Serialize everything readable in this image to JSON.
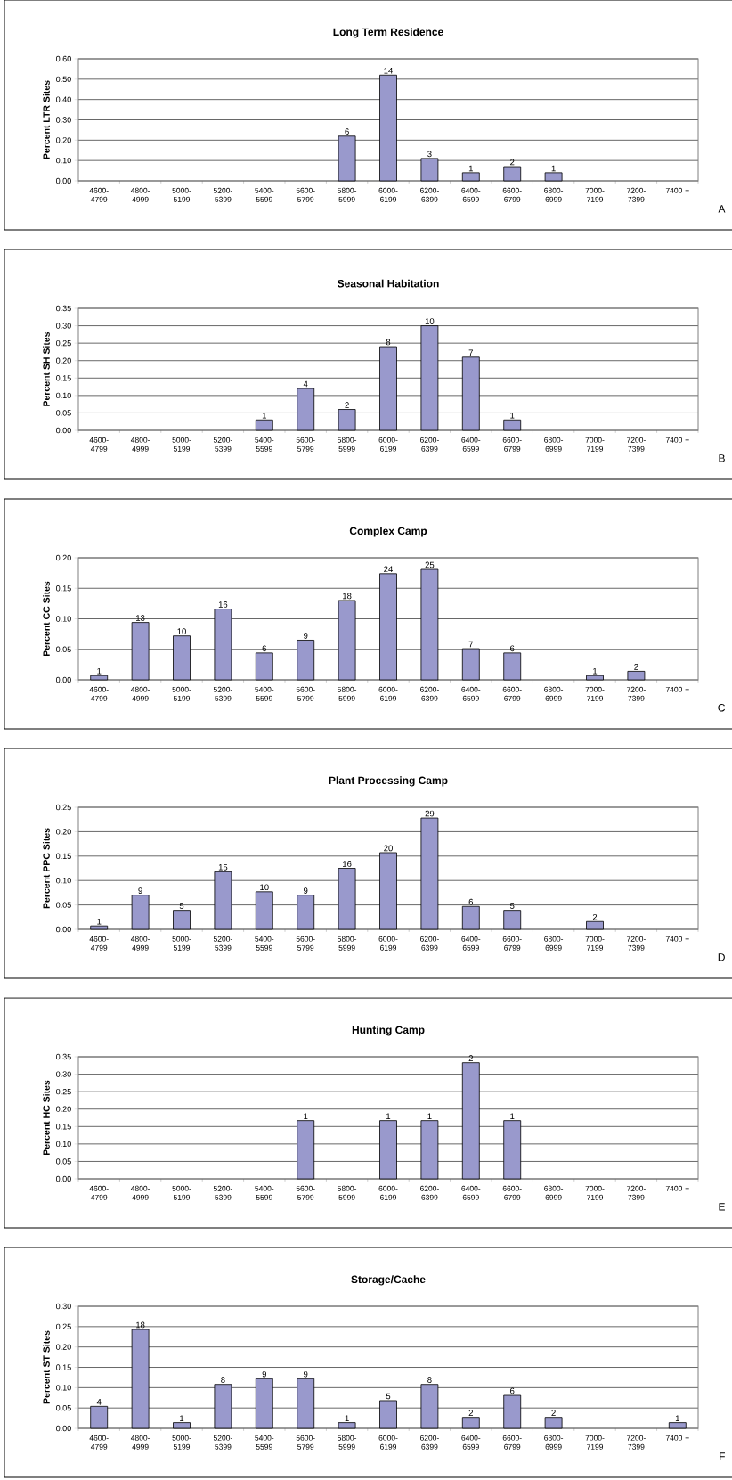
{
  "chart_data": [
    {
      "type": "bar",
      "title": "Long Term Residence",
      "ylabel": "Percent LTR Sites",
      "categories": [
        "4600-4799",
        "4800-4999",
        "5000-5199",
        "5200-5399",
        "5400-5599",
        "5600-5799",
        "5800-5999",
        "6000-6199",
        "6200-6399",
        "6400-6599",
        "6600-6799",
        "6800-6999",
        "7000-7199",
        "7200-7399",
        "7400 +"
      ],
      "values": [
        null,
        null,
        null,
        null,
        null,
        null,
        0.22,
        0.52,
        0.11,
        0.04,
        0.07,
        0.04,
        null,
        null,
        null
      ],
      "color": "#9999cc",
      "ylim": [
        0,
        0.6
      ],
      "yticks": [
        {
          "value": 0,
          "label": "0.00"
        },
        {
          "value": 0.1,
          "label": "0.10"
        },
        {
          "value": 0.2,
          "label": "0.20"
        },
        {
          "value": 0.3,
          "label": "0.30"
        },
        {
          "value": 0.4,
          "label": "0.40"
        },
        {
          "value": 0.5,
          "label": "0.50"
        },
        {
          "value": 0.6,
          "label": "0.60"
        }
      ],
      "grid": "y",
      "annotations": [
        {
          "text": "6",
          "x": "5800-5999",
          "y": 0.22
        },
        {
          "text": "14",
          "x": "6000-6199",
          "y": 0.52
        },
        {
          "text": "3",
          "x": "6200-6399",
          "y": 0.11
        },
        {
          "text": "1",
          "x": "6400-6599",
          "y": 0.04
        },
        {
          "text": "2",
          "x": "6600-6799",
          "y": 0.07
        },
        {
          "text": "1",
          "x": "6800-6999",
          "y": 0.04
        },
        "A"
      ]
    },
    {
      "type": "bar",
      "title": "Seasonal Habitation",
      "ylabel": "Percent SH Sites",
      "categories": [
        "4600-4799",
        "4800-4999",
        "5000-5199",
        "5200-5399",
        "5400-5599",
        "5600-5799",
        "5800-5999",
        "6000-6199",
        "6200-6399",
        "6400-6599",
        "6600-6799",
        "6800-6999",
        "7000-7199",
        "7200-7399",
        "7400 +"
      ],
      "values": [
        null,
        null,
        null,
        null,
        0.03,
        0.12,
        0.06,
        0.24,
        0.3,
        0.21,
        0.03,
        null,
        null,
        null,
        null
      ],
      "color": "#9999cc",
      "ylim": [
        0,
        0.35
      ],
      "yticks": [
        {
          "value": 0,
          "label": "0.00"
        },
        {
          "value": 0.05,
          "label": "0.05"
        },
        {
          "value": 0.1,
          "label": "0.10"
        },
        {
          "value": 0.15,
          "label": "0.15"
        },
        {
          "value": 0.2,
          "label": "0.20"
        },
        {
          "value": 0.25,
          "label": "0.25"
        },
        {
          "value": 0.3,
          "label": "0.30"
        },
        {
          "value": 0.35,
          "label": "0.35"
        }
      ],
      "grid": "y",
      "annotations": [
        {
          "text": "1",
          "x": "5400-5599",
          "y": 0.03
        },
        {
          "text": "4",
          "x": "5600-5799",
          "y": 0.12
        },
        {
          "text": "2",
          "x": "5800-5999",
          "y": 0.06
        },
        {
          "text": "8",
          "x": "6000-6199",
          "y": 0.24
        },
        {
          "text": "10",
          "x": "6200-6399",
          "y": 0.3
        },
        {
          "text": "7",
          "x": "6400-6599",
          "y": 0.21
        },
        {
          "text": "1",
          "x": "6600-6799",
          "y": 0.03
        },
        "B"
      ]
    },
    {
      "type": "bar",
      "title": "Complex Camp",
      "ylabel": "Percent CC Sites",
      "categories": [
        "4600-4799",
        "4800-4999",
        "5000-5199",
        "5200-5399",
        "5400-5599",
        "5600-5799",
        "5800-5999",
        "6000-6199",
        "6200-6399",
        "6400-6599",
        "6600-6799",
        "6800-6999",
        "7000-7199",
        "7200-7399",
        "7400 +"
      ],
      "values": [
        0.007,
        0.094,
        0.072,
        0.116,
        0.044,
        0.065,
        0.13,
        0.174,
        0.181,
        0.051,
        0.044,
        null,
        0.007,
        0.014,
        null
      ],
      "color": "#9999cc",
      "ylim": [
        0,
        0.2
      ],
      "yticks": [
        {
          "value": 0,
          "label": "0.00"
        },
        {
          "value": 0.05,
          "label": "0.05"
        },
        {
          "value": 0.1,
          "label": "0.10"
        },
        {
          "value": 0.15,
          "label": "0.15"
        },
        {
          "value": 0.2,
          "label": "0.20"
        }
      ],
      "grid": "y",
      "annotations": [
        {
          "text": "1",
          "x": "4600-4799",
          "y": 0.007
        },
        {
          "text": "13",
          "x": "4800-4999",
          "y": 0.094
        },
        {
          "text": "10",
          "x": "5000-5199",
          "y": 0.072
        },
        {
          "text": "16",
          "x": "5200-5399",
          "y": 0.116
        },
        {
          "text": "6",
          "x": "5400-5599",
          "y": 0.044
        },
        {
          "text": "9",
          "x": "5600-5799",
          "y": 0.065
        },
        {
          "text": "18",
          "x": "5800-5999",
          "y": 0.13
        },
        {
          "text": "24",
          "x": "6000-6199",
          "y": 0.174
        },
        {
          "text": "25",
          "x": "6200-6399",
          "y": 0.181
        },
        {
          "text": "7",
          "x": "6400-6599",
          "y": 0.051
        },
        {
          "text": "6",
          "x": "6600-6799",
          "y": 0.044
        },
        {
          "text": "1",
          "x": "7000-7199",
          "y": 0.007
        },
        {
          "text": "2",
          "x": "7200-7399",
          "y": 0.014
        },
        "C"
      ]
    },
    {
      "type": "bar",
      "title": "Plant Processing Camp",
      "ylabel": "Percent  PPC Sites",
      "categories": [
        "4600-4799",
        "4800-4999",
        "5000-5199",
        "5200-5399",
        "5400-5599",
        "5600-5799",
        "5800-5999",
        "6000-6199",
        "6200-6399",
        "6400-6599",
        "6600-6799",
        "6800-6999",
        "7000-7199",
        "7200-7399",
        "7400 +"
      ],
      "values": [
        0.007,
        0.07,
        0.039,
        0.118,
        0.077,
        0.07,
        0.125,
        0.157,
        0.228,
        0.047,
        0.039,
        null,
        0.016,
        null,
        null
      ],
      "color": "#9999cc",
      "ylim": [
        0,
        0.25
      ],
      "yticks": [
        {
          "value": 0,
          "label": "0.00"
        },
        {
          "value": 0.05,
          "label": "0.05"
        },
        {
          "value": 0.1,
          "label": "0.10"
        },
        {
          "value": 0.15,
          "label": "0.15"
        },
        {
          "value": 0.2,
          "label": "0.20"
        },
        {
          "value": 0.25,
          "label": "0.25"
        }
      ],
      "grid": "y",
      "annotations": [
        {
          "text": "1",
          "x": "4600-4799",
          "y": 0.007
        },
        {
          "text": "9",
          "x": "4800-4999",
          "y": 0.07
        },
        {
          "text": "5",
          "x": "5000-5199",
          "y": 0.039
        },
        {
          "text": "15",
          "x": "5200-5399",
          "y": 0.118
        },
        {
          "text": "10",
          "x": "5400-5599",
          "y": 0.077
        },
        {
          "text": "9",
          "x": "5600-5799",
          "y": 0.07
        },
        {
          "text": "16",
          "x": "5800-5999",
          "y": 0.125
        },
        {
          "text": "20",
          "x": "6000-6199",
          "y": 0.157
        },
        {
          "text": "29",
          "x": "6200-6399",
          "y": 0.228
        },
        {
          "text": "6",
          "x": "6400-6599",
          "y": 0.047
        },
        {
          "text": "5",
          "x": "6600-6799",
          "y": 0.039
        },
        {
          "text": "2",
          "x": "7000-7199",
          "y": 0.016
        },
        "D"
      ]
    },
    {
      "type": "bar",
      "title": "Hunting Camp",
      "ylabel": "Percent HC Sites",
      "categories": [
        "4600-4799",
        "4800-4999",
        "5000-5199",
        "5200-5399",
        "5400-5599",
        "5600-5799",
        "5800-5999",
        "6000-6199",
        "6200-6399",
        "6400-6599",
        "6600-6799",
        "6800-6999",
        "7000-7199",
        "7200-7399",
        "7400 +"
      ],
      "values": [
        null,
        null,
        null,
        null,
        null,
        0.167,
        null,
        0.167,
        0.167,
        0.333,
        0.167,
        null,
        null,
        null,
        null
      ],
      "color": "#9999cc",
      "ylim": [
        0,
        0.35
      ],
      "yticks": [
        {
          "value": 0,
          "label": "0.00"
        },
        {
          "value": 0.05,
          "label": "0.05"
        },
        {
          "value": 0.1,
          "label": "0.10"
        },
        {
          "value": 0.15,
          "label": "0.15"
        },
        {
          "value": 0.2,
          "label": "0.20"
        },
        {
          "value": 0.25,
          "label": "0.25"
        },
        {
          "value": 0.3,
          "label": "0.30"
        },
        {
          "value": 0.35,
          "label": "0.35"
        }
      ],
      "grid": "y",
      "annotations": [
        {
          "text": "1",
          "x": "5600-5799",
          "y": 0.167
        },
        {
          "text": "1",
          "x": "6000-6199",
          "y": 0.167
        },
        {
          "text": "1",
          "x": "6200-6399",
          "y": 0.167
        },
        {
          "text": "2",
          "x": "6400-6599",
          "y": 0.333
        },
        {
          "text": "1",
          "x": "6600-6799",
          "y": 0.167
        },
        "E"
      ]
    },
    {
      "type": "bar",
      "title": "Storage/Cache",
      "ylabel": "Percent ST Sites",
      "categories": [
        "4600-4799",
        "4800-4999",
        "5000-5199",
        "5200-5399",
        "5400-5599",
        "5600-5799",
        "5800-5999",
        "6000-6199",
        "6200-6399",
        "6400-6599",
        "6600-6799",
        "6800-6999",
        "7000-7199",
        "7200-7399",
        "7400 +"
      ],
      "values": [
        0.054,
        0.243,
        0.014,
        0.108,
        0.122,
        0.122,
        0.014,
        0.068,
        0.108,
        0.027,
        0.081,
        0.027,
        null,
        null,
        0.014
      ],
      "color": "#9999cc",
      "ylim": [
        0,
        0.3
      ],
      "yticks": [
        {
          "value": 0,
          "label": "0.00"
        },
        {
          "value": 0.05,
          "label": "0.05"
        },
        {
          "value": 0.1,
          "label": "0.10"
        },
        {
          "value": 0.15,
          "label": "0.15"
        },
        {
          "value": 0.2,
          "label": "0.20"
        },
        {
          "value": 0.25,
          "label": "0.25"
        },
        {
          "value": 0.3,
          "label": "0.30"
        }
      ],
      "grid": "y",
      "annotations": [
        {
          "text": "4",
          "x": "4600-4799",
          "y": 0.054
        },
        {
          "text": "18",
          "x": "4800-4999",
          "y": 0.243
        },
        {
          "text": "1",
          "x": "5000-5199",
          "y": 0.014
        },
        {
          "text": "8",
          "x": "5200-5399",
          "y": 0.108
        },
        {
          "text": "9",
          "x": "5400-5599",
          "y": 0.122
        },
        {
          "text": "9",
          "x": "5600-5799",
          "y": 0.122
        },
        {
          "text": "1",
          "x": "5800-5999",
          "y": 0.014
        },
        {
          "text": "5",
          "x": "6000-6199",
          "y": 0.068
        },
        {
          "text": "8",
          "x": "6200-6399",
          "y": 0.108
        },
        {
          "text": "2",
          "x": "6400-6599",
          "y": 0.027
        },
        {
          "text": "6",
          "x": "6600-6799",
          "y": 0.081
        },
        {
          "text": "2",
          "x": "6800-6999",
          "y": 0.027
        },
        {
          "text": "1",
          "x": "7400 +",
          "y": 0.014
        },
        "F"
      ]
    }
  ]
}
